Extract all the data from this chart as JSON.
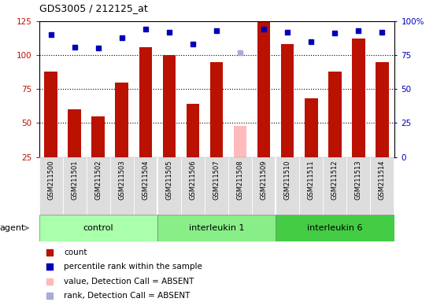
{
  "title": "GDS3005 / 212125_at",
  "samples": [
    "GSM211500",
    "GSM211501",
    "GSM211502",
    "GSM211503",
    "GSM211504",
    "GSM211505",
    "GSM211506",
    "GSM211507",
    "GSM211508",
    "GSM211509",
    "GSM211510",
    "GSM211511",
    "GSM211512",
    "GSM211513",
    "GSM211514"
  ],
  "groups": [
    {
      "label": "control",
      "color": "#aaffaa",
      "indices": [
        0,
        1,
        2,
        3,
        4
      ]
    },
    {
      "label": "interleukin 1",
      "color": "#88ee88",
      "indices": [
        5,
        6,
        7,
        8,
        9
      ]
    },
    {
      "label": "interleukin 6",
      "color": "#44cc44",
      "indices": [
        10,
        11,
        12,
        13,
        14
      ]
    }
  ],
  "count_values": [
    88,
    60,
    55,
    80,
    106,
    100,
    64,
    95,
    48,
    125,
    108,
    68,
    88,
    112,
    95
  ],
  "count_absent": [
    false,
    false,
    false,
    false,
    false,
    false,
    false,
    false,
    true,
    false,
    false,
    false,
    false,
    false,
    false
  ],
  "rank_values": [
    90,
    81,
    80,
    88,
    94,
    92,
    83,
    93,
    77,
    94,
    92,
    85,
    91,
    93,
    92
  ],
  "rank_absent": [
    false,
    false,
    false,
    false,
    false,
    false,
    false,
    false,
    true,
    false,
    false,
    false,
    false,
    false,
    false
  ],
  "count_color": "#bb1100",
  "count_absent_color": "#ffbbbb",
  "rank_color": "#0000bb",
  "rank_absent_color": "#aaaadd",
  "left_ylim": [
    25,
    125
  ],
  "left_yticks": [
    25,
    50,
    75,
    100,
    125
  ],
  "right_ylim": [
    0,
    100
  ],
  "right_yticks": [
    0,
    25,
    50,
    75,
    100
  ],
  "right_yticklabels": [
    "0",
    "25",
    "50",
    "75",
    "100%"
  ],
  "hgrid_values": [
    50,
    75,
    100
  ],
  "bg_plot_color": "#ffffff",
  "bg_label_color": "#dddddd",
  "agent_label": "agent"
}
